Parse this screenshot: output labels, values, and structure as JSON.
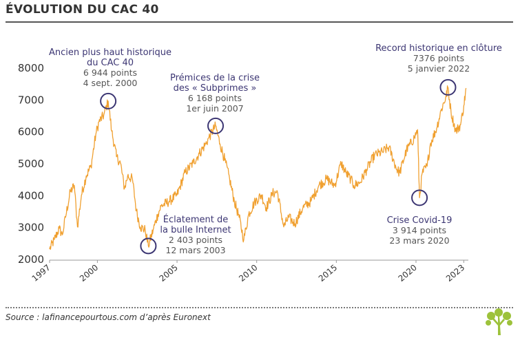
{
  "header": {
    "title": "ÉVOLUTION DU CAC 40"
  },
  "footer": {
    "source": "Source : lafinancepourtous.com d’après Euronext"
  },
  "colors": {
    "line": "#f0a030",
    "marker": "#3c3673",
    "accent_text": "#3c3673",
    "logo": "#9dc23b"
  },
  "chart_data": {
    "type": "line",
    "title": "ÉVOLUTION DU CAC 40",
    "xlabel": "",
    "ylabel": "",
    "xlim": [
      1997.0,
      2023.2
    ],
    "ylim": [
      2000,
      8000
    ],
    "y_ticks": [
      2000,
      3000,
      4000,
      5000,
      6000,
      7000,
      8000
    ],
    "x_ticks": [
      {
        "value": 1997,
        "label": "1997"
      },
      {
        "value": 2000,
        "label": "2000"
      },
      {
        "value": 2005,
        "label": "2005"
      },
      {
        "value": 2010,
        "label": "2010"
      },
      {
        "value": 2015,
        "label": "2015"
      },
      {
        "value": 2020,
        "label": "2020"
      },
      {
        "value": 2023,
        "label": "2023"
      }
    ],
    "grid": false,
    "legend": "none",
    "series": [
      {
        "x": [
          1997.0,
          1997.3,
          1997.6,
          1997.8,
          1998.0,
          1998.3,
          1998.55,
          1998.75,
          1999.0,
          1999.3,
          1999.6,
          1999.9,
          2000.1,
          2000.4,
          2000.68,
          2000.9,
          2001.2,
          2001.45,
          2001.7,
          2001.9,
          2002.2,
          2002.45,
          2002.7,
          2003.0,
          2003.2,
          2003.5,
          2003.8,
          2004.0,
          2004.5,
          2005.0,
          2005.5,
          2006.0,
          2006.4,
          2006.8,
          2007.0,
          2007.42,
          2007.7,
          2008.0,
          2008.3,
          2008.6,
          2008.9,
          2009.19,
          2009.5,
          2009.9,
          2010.3,
          2010.6,
          2011.0,
          2011.3,
          2011.7,
          2012.0,
          2012.4,
          2012.9,
          2013.4,
          2013.9,
          2014.4,
          2014.9,
          2015.3,
          2015.6,
          2015.9,
          2016.1,
          2016.5,
          2016.9,
          2017.4,
          2017.9,
          2018.3,
          2018.8,
          2018.98,
          2019.4,
          2019.9,
          2020.1,
          2020.22,
          2020.4,
          2020.7,
          2020.9,
          2021.3,
          2021.6,
          2021.9,
          2022.01,
          2022.2,
          2022.5,
          2022.8,
          2023.0,
          2023.15
        ],
        "y": [
          2300,
          2600,
          2950,
          2750,
          3300,
          4100,
          4300,
          3000,
          4000,
          4600,
          4900,
          5900,
          6300,
          6500,
          6944,
          6000,
          5200,
          5000,
          4200,
          4600,
          4500,
          3500,
          3000,
          2900,
          2403,
          2900,
          3400,
          3650,
          3800,
          4000,
          4700,
          5000,
          5300,
          5600,
          5800,
          6168,
          5600,
          5100,
          4500,
          3800,
          3300,
          2600,
          3400,
          3800,
          4000,
          3600,
          4050,
          4100,
          3000,
          3300,
          3100,
          3600,
          3800,
          4300,
          4500,
          4300,
          5000,
          4700,
          4500,
          4300,
          4400,
          4800,
          5250,
          5350,
          5500,
          4800,
          4700,
          5400,
          5800,
          6050,
          3914,
          4700,
          4900,
          5600,
          6100,
          6700,
          7100,
          7376,
          6600,
          6000,
          6200,
          6800,
          7350
        ]
      }
    ],
    "annotations": [
      {
        "x": 2000.68,
        "y": 6944,
        "lines": [
          "Ancien plus haut historique",
          "du CAC 40"
        ],
        "detail": [
          "6 944 points",
          "4 sept. 2000"
        ]
      },
      {
        "x": 2007.42,
        "y": 6168,
        "lines": [
          "Prémices de la crise",
          "des « Subprimes »"
        ],
        "detail": [
          "6 168 points",
          "1er juin 2007"
        ]
      },
      {
        "x": 2003.2,
        "y": 2403,
        "lines": [
          "Éclatement de",
          "la bulle Internet"
        ],
        "detail": [
          "2 403 points",
          "12 mars 2003"
        ]
      },
      {
        "x": 2020.22,
        "y": 3914,
        "lines": [
          "Crise Covid-19"
        ],
        "detail": [
          "3 914 points",
          "23 mars 2020"
        ]
      },
      {
        "x": 2022.01,
        "y": 7376,
        "lines": [
          "Record historique en clôture"
        ],
        "detail": [
          "7376 points",
          "5 janvier 2022"
        ]
      }
    ]
  }
}
